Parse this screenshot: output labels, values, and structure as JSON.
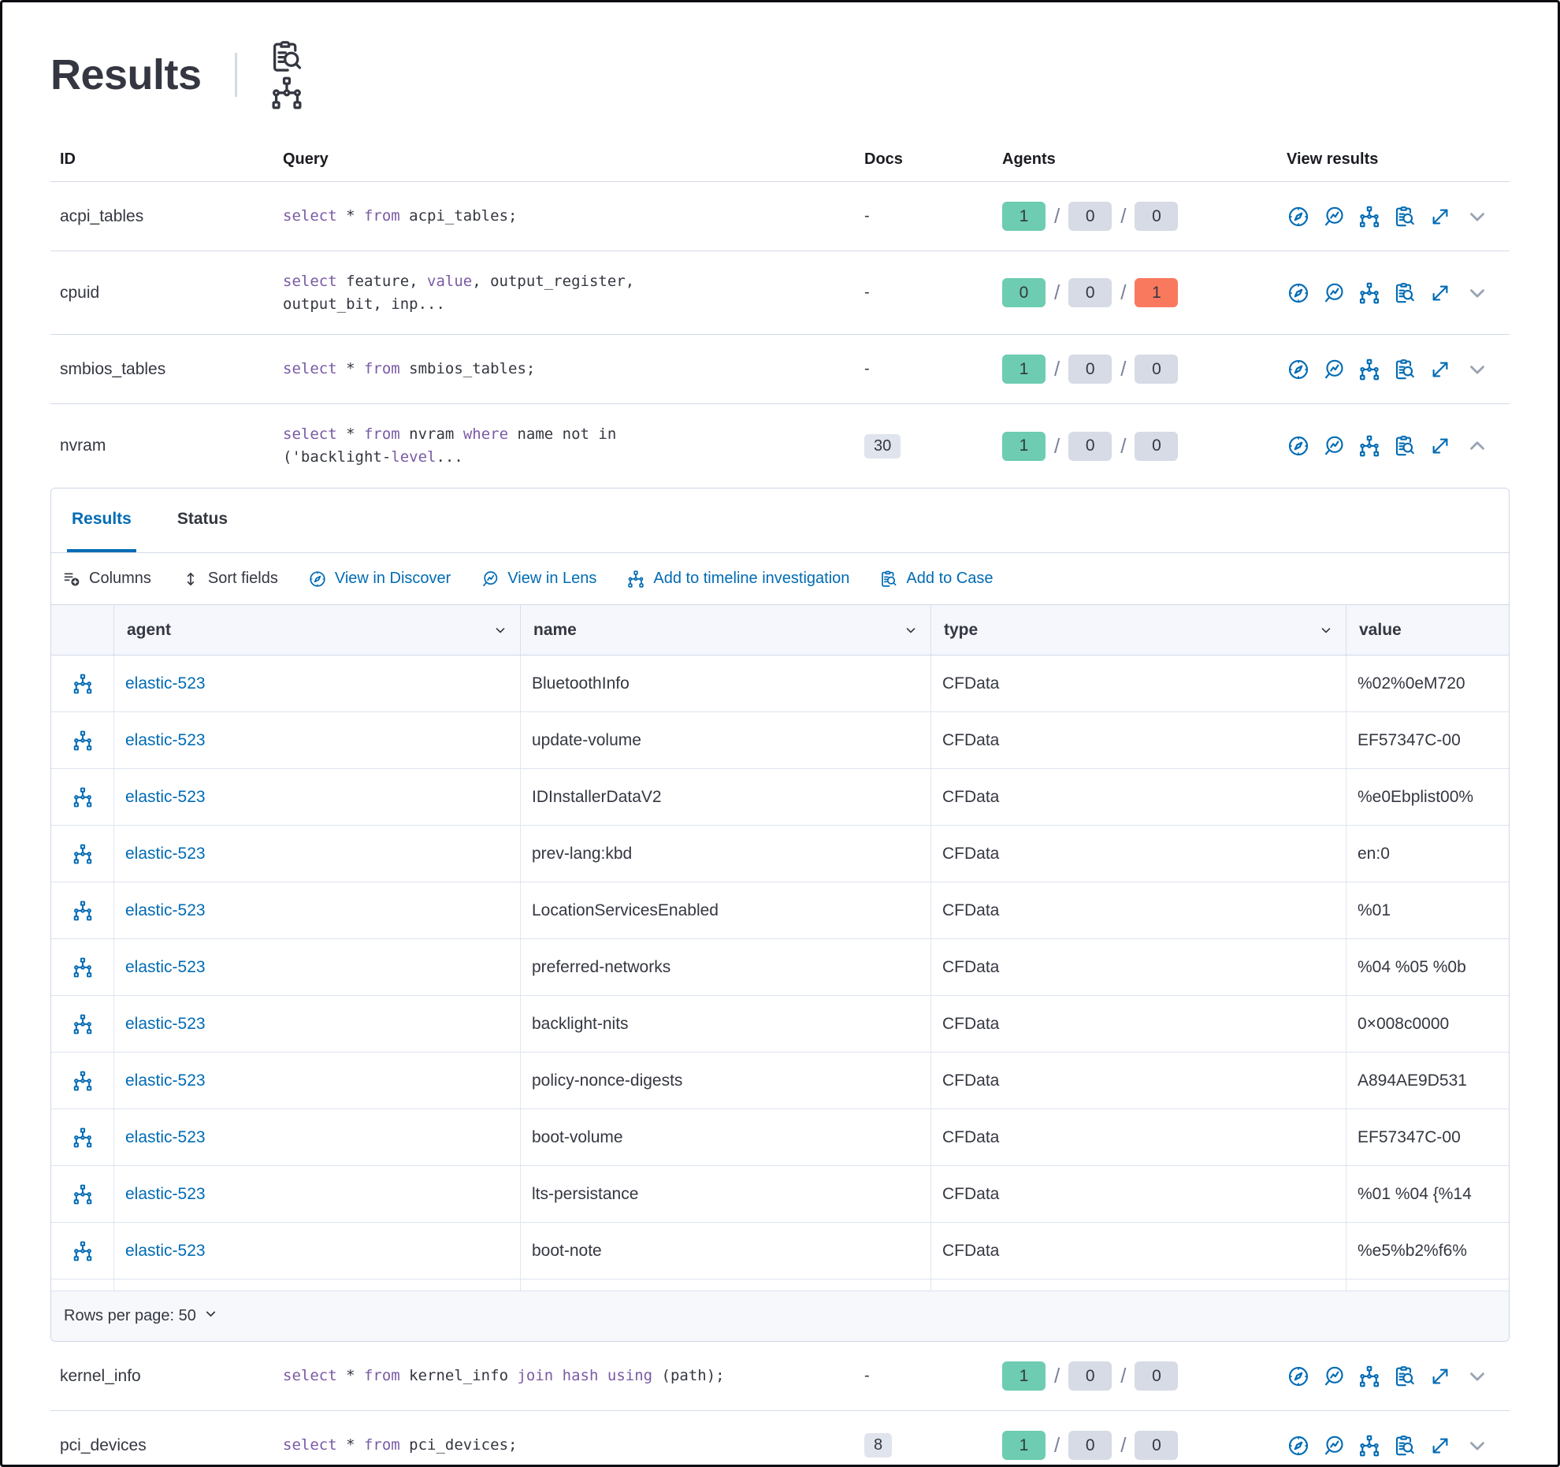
{
  "app": {
    "title": "Results"
  },
  "title_actions": [
    {
      "id": "inspect-queries",
      "icon": "inspect"
    },
    {
      "id": "timeline-queries",
      "icon": "timeline"
    }
  ],
  "results_table": {
    "columns": {
      "id": "ID",
      "query": "Query",
      "docs": "Docs",
      "agents": "Agents",
      "view": "View results"
    },
    "rows": [
      {
        "id": "acpi_tables",
        "docs": "-",
        "docs_is_badge": false,
        "agents": [
          "1",
          "0",
          "0"
        ],
        "agents_failed": false,
        "expanded": false,
        "query": [
          [
            {
              "k": 1,
              "t": "select"
            },
            {
              "k": 0,
              "t": " * "
            },
            {
              "k": 1,
              "t": "from"
            },
            {
              "k": 0,
              "t": " acpi_tables;"
            }
          ]
        ]
      },
      {
        "id": "cpuid",
        "docs": "-",
        "docs_is_badge": false,
        "agents": [
          "0",
          "0",
          "1"
        ],
        "agents_failed": true,
        "expanded": false,
        "query": [
          [
            {
              "k": 1,
              "t": "select"
            },
            {
              "k": 0,
              "t": " feature, "
            },
            {
              "k": 1,
              "t": "value"
            },
            {
              "k": 0,
              "t": ", output_register,"
            }
          ],
          [
            {
              "k": 0,
              "t": "output_bit, inp..."
            }
          ]
        ]
      },
      {
        "id": "smbios_tables",
        "docs": "-",
        "docs_is_badge": false,
        "agents": [
          "1",
          "0",
          "0"
        ],
        "agents_failed": false,
        "expanded": false,
        "query": [
          [
            {
              "k": 1,
              "t": "select"
            },
            {
              "k": 0,
              "t": " * "
            },
            {
              "k": 1,
              "t": "from"
            },
            {
              "k": 0,
              "t": " smbios_tables;"
            }
          ]
        ]
      },
      {
        "id": "nvram",
        "docs": "30",
        "docs_is_badge": true,
        "agents": [
          "1",
          "0",
          "0"
        ],
        "agents_failed": false,
        "expanded": true,
        "query": [
          [
            {
              "k": 1,
              "t": "select"
            },
            {
              "k": 0,
              "t": " * "
            },
            {
              "k": 1,
              "t": "from"
            },
            {
              "k": 0,
              "t": " nvram "
            },
            {
              "k": 1,
              "t": "where"
            },
            {
              "k": 0,
              "t": " name not in"
            }
          ],
          [
            {
              "k": 0,
              "t": "('backlight-"
            },
            {
              "k": 1,
              "t": "level"
            },
            {
              "k": 0,
              "t": "..."
            }
          ]
        ]
      }
    ],
    "rows_after": [
      {
        "id": "kernel_info",
        "docs": "-",
        "docs_is_badge": false,
        "agents": [
          "1",
          "0",
          "0"
        ],
        "agents_failed": false,
        "expanded": false,
        "query": [
          [
            {
              "k": 1,
              "t": "select"
            },
            {
              "k": 0,
              "t": " * "
            },
            {
              "k": 1,
              "t": "from"
            },
            {
              "k": 0,
              "t": " kernel_info "
            },
            {
              "k": 1,
              "t": "join"
            },
            {
              "k": 0,
              "t": " "
            },
            {
              "k": 1,
              "t": "hash"
            },
            {
              "k": 0,
              "t": " "
            },
            {
              "k": 1,
              "t": "using"
            },
            {
              "k": 0,
              "t": " (path);"
            }
          ]
        ]
      },
      {
        "id": "pci_devices",
        "docs": "8",
        "docs_is_badge": true,
        "agents": [
          "1",
          "0",
          "0"
        ],
        "agents_failed": false,
        "expanded": false,
        "query": [
          [
            {
              "k": 1,
              "t": "select"
            },
            {
              "k": 0,
              "t": " * "
            },
            {
              "k": 1,
              "t": "from"
            },
            {
              "k": 0,
              "t": " pci_devices;"
            }
          ]
        ]
      }
    ]
  },
  "view_actions": [
    {
      "id": "view-in-discover",
      "icon": "compass"
    },
    {
      "id": "view-in-lens",
      "icon": "lens"
    },
    {
      "id": "view-in-timeline",
      "icon": "timeline"
    },
    {
      "id": "view-in-cases",
      "icon": "inspect"
    },
    {
      "id": "expand-results",
      "icon": "expand"
    }
  ],
  "expanded_panel": {
    "tabs": [
      {
        "id": "results",
        "label": "Results",
        "active": true
      },
      {
        "id": "status",
        "label": "Status",
        "active": false
      }
    ],
    "toolbar": [
      {
        "id": "columns",
        "label": "Columns",
        "icon": "columns",
        "blue": false
      },
      {
        "id": "sort-fields",
        "label": "Sort fields",
        "icon": "sort",
        "blue": false
      },
      {
        "id": "view-in-discover",
        "label": "View in Discover",
        "icon": "compass",
        "blue": true
      },
      {
        "id": "view-in-lens",
        "label": "View in Lens",
        "icon": "lens",
        "blue": true
      },
      {
        "id": "add-to-timeline",
        "label": "Add to timeline investigation",
        "icon": "timeline",
        "blue": true
      },
      {
        "id": "add-to-case",
        "label": "Add to Case",
        "icon": "inspect",
        "blue": true
      }
    ],
    "grid": {
      "columns": [
        {
          "label": "agent",
          "sortable": true
        },
        {
          "label": "name",
          "sortable": true
        },
        {
          "label": "type",
          "sortable": true
        },
        {
          "label": "value",
          "sortable": false
        }
      ],
      "rows": [
        {
          "agent": "elastic-523",
          "name": "BluetoothInfo",
          "type": "CFData",
          "value": "%02%0eM720"
        },
        {
          "agent": "elastic-523",
          "name": "update-volume",
          "type": "CFData",
          "value": "EF57347C-00"
        },
        {
          "agent": "elastic-523",
          "name": "IDInstallerDataV2",
          "type": "CFData",
          "value": "%e0Ebplist00%"
        },
        {
          "agent": "elastic-523",
          "name": "prev-lang:kbd",
          "type": "CFData",
          "value": "en:0"
        },
        {
          "agent": "elastic-523",
          "name": "LocationServicesEnabled",
          "type": "CFData",
          "value": "%01"
        },
        {
          "agent": "elastic-523",
          "name": "preferred-networks",
          "type": "CFData",
          "value": "%04 %05 %0b"
        },
        {
          "agent": "elastic-523",
          "name": "backlight-nits",
          "type": "CFData",
          "value": "0×008c0000"
        },
        {
          "agent": "elastic-523",
          "name": "policy-nonce-digests",
          "type": "CFData",
          "value": "A894AE9D531"
        },
        {
          "agent": "elastic-523",
          "name": "boot-volume",
          "type": "CFData",
          "value": "EF57347C-00"
        },
        {
          "agent": "elastic-523",
          "name": "lts-persistance",
          "type": "CFData",
          "value": "%01 %04 {%14"
        },
        {
          "agent": "elastic-523",
          "name": "boot-note",
          "type": "CFData",
          "value": "%e5%b2%f6%"
        }
      ]
    },
    "pagination": {
      "label": "Rows per page: 50"
    }
  },
  "colors": {
    "blue": "#006bb4",
    "badge_success": "#6dccb1",
    "badge_default": "#d6dbe5",
    "badge_danger": "#f9795f",
    "keyword_purple": "#7a5aa6"
  }
}
